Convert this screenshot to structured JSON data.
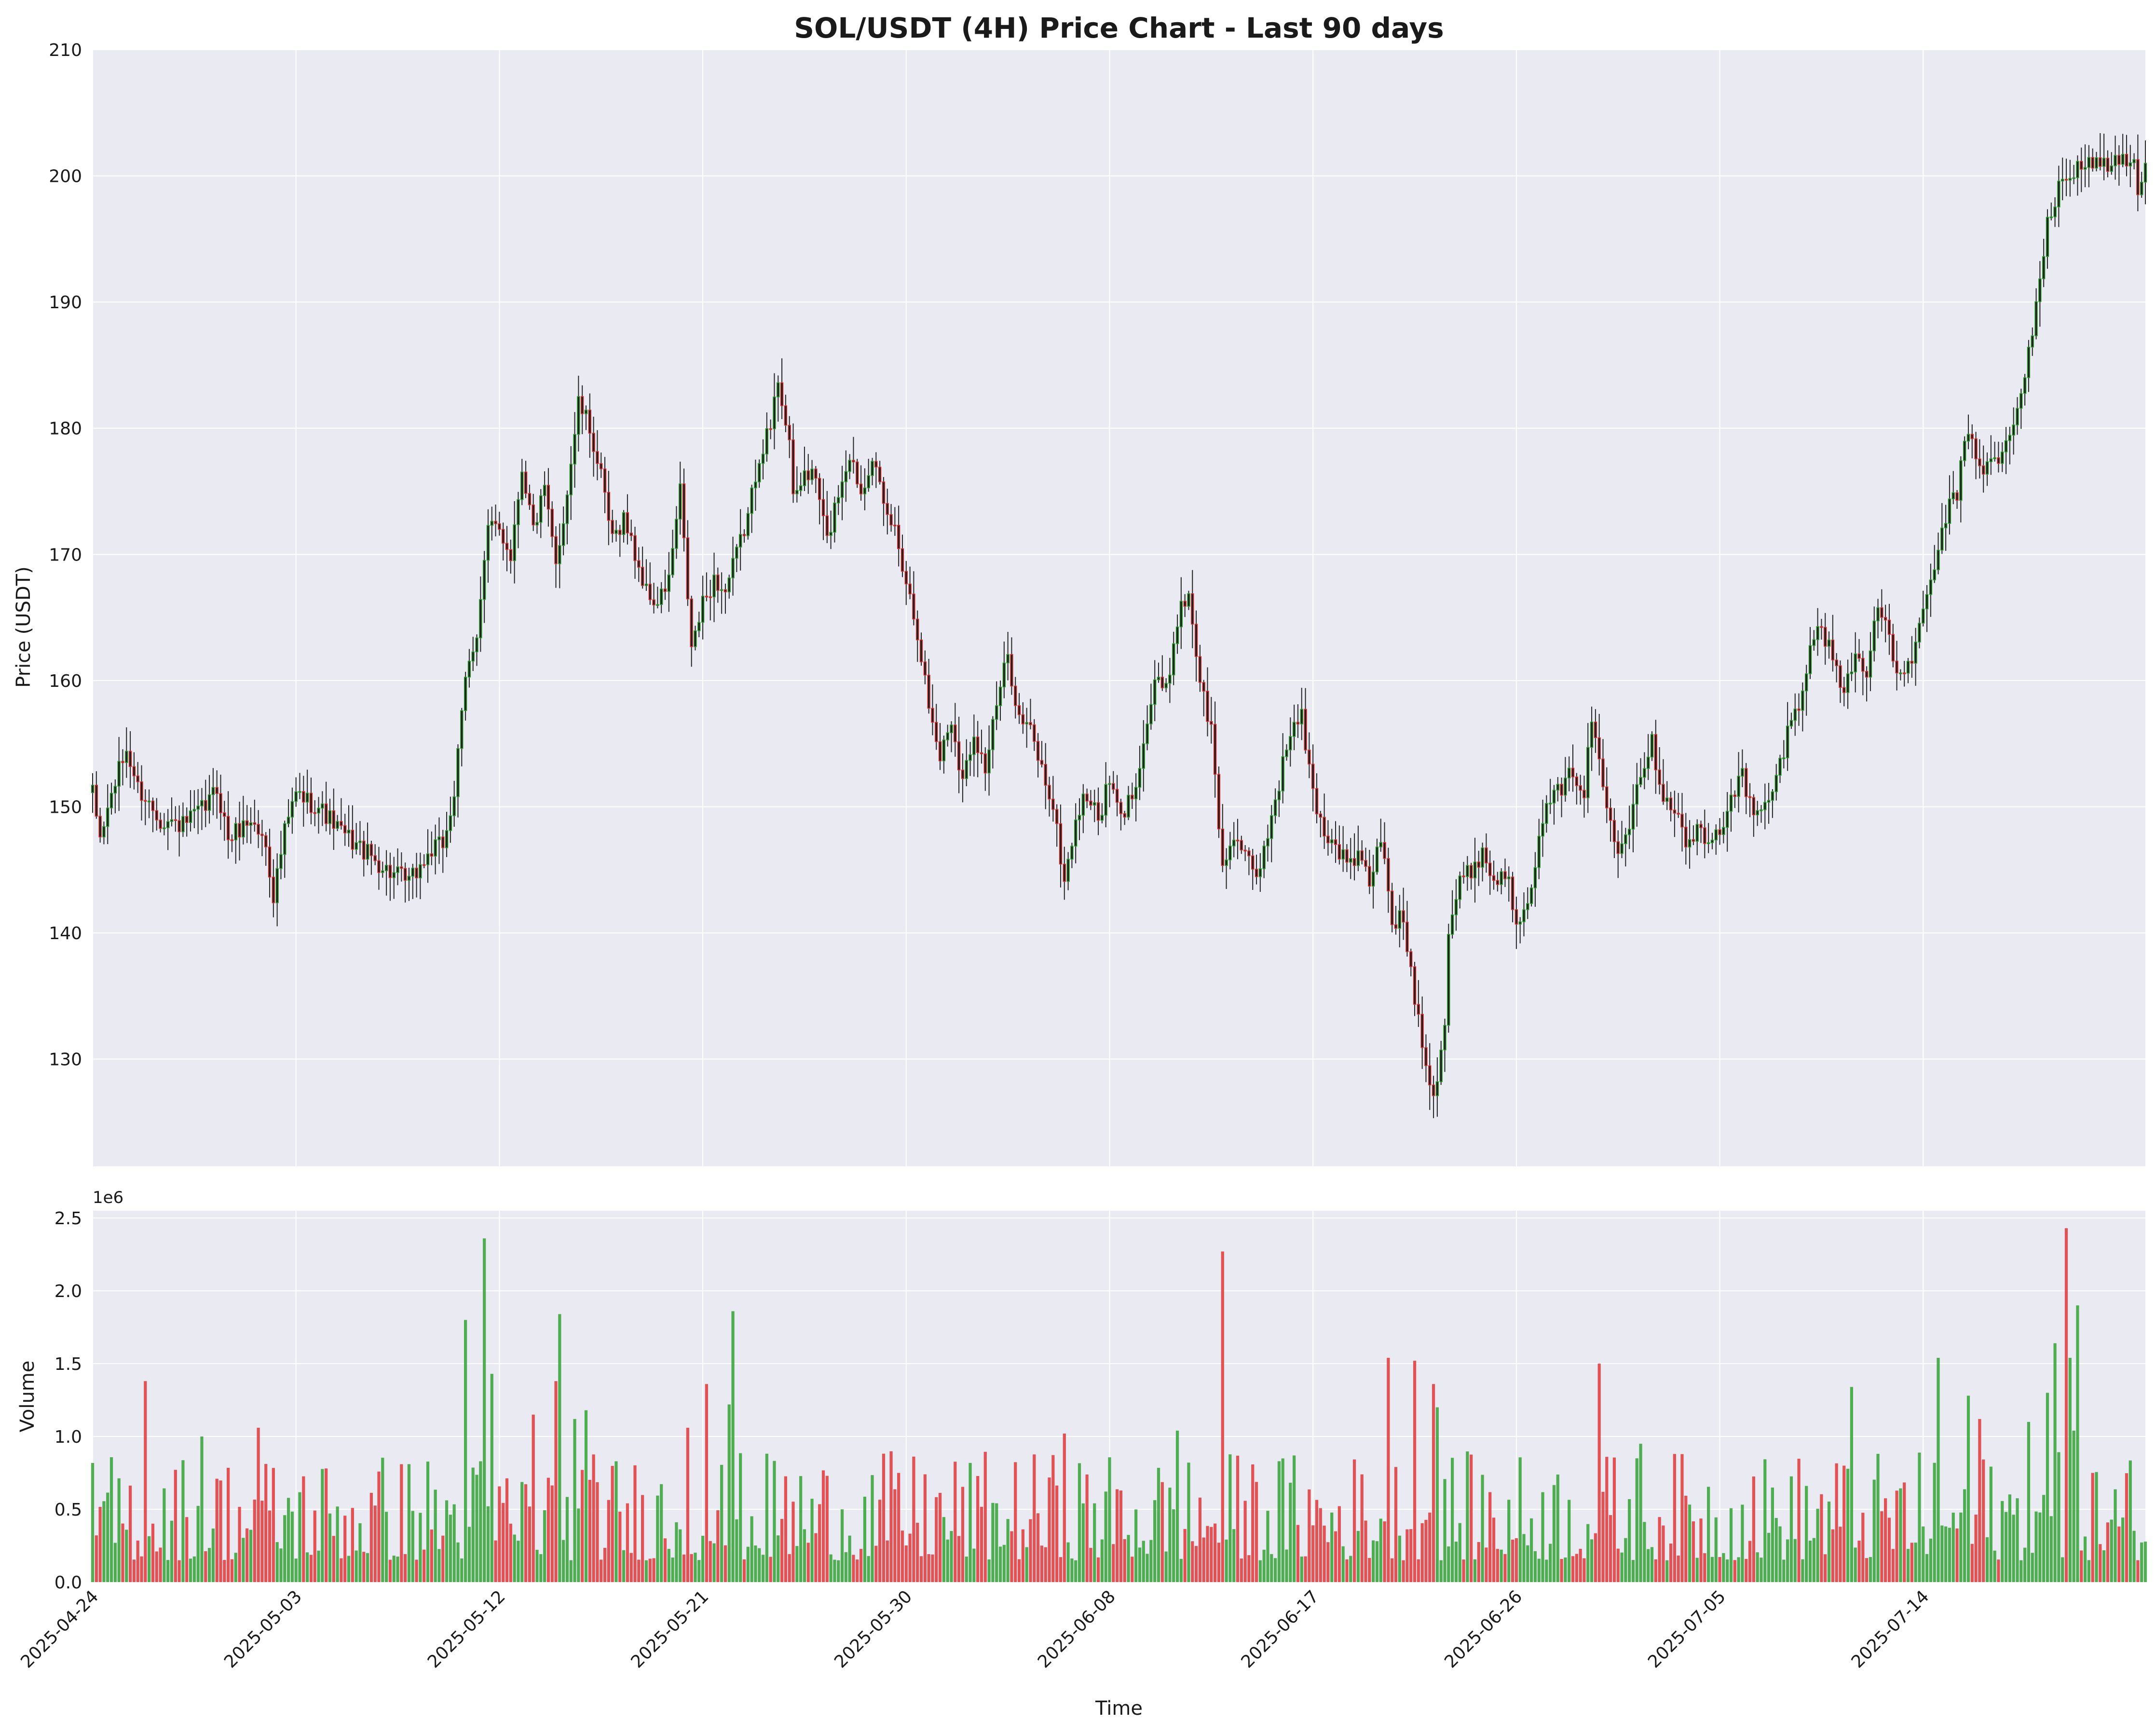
{
  "colors": {
    "background": "#ffffff",
    "panel": "#eaeaf2",
    "grid": "#ffffff",
    "up": "#2ca02c",
    "down": "#e03030",
    "body_dark": "#1f1f1f",
    "wick": "#222222",
    "text": "#1a1a1a"
  },
  "chart_data": [
    {
      "type": "candlestick",
      "title": "SOL/USDT (4H) Price Chart - Last 90 days",
      "ylabel": "Price (USDT)",
      "xlabel": "",
      "ylim": [
        121.5,
        210
      ],
      "yticks": [
        130,
        140,
        150,
        160,
        170,
        180,
        190,
        200,
        210
      ],
      "grid": true,
      "candle_interval_hours": 4,
      "x_start": "2025-04-24",
      "x_end": "2025-07-23T20:00",
      "anchors": [
        [
          "2025-04-24",
          151
        ],
        [
          "2025-04-24T08:00",
          147.5
        ],
        [
          "2025-04-25",
          152
        ],
        [
          "2025-04-25T12:00",
          154.5
        ],
        [
          "2025-04-26",
          151.5
        ],
        [
          "2025-04-27",
          149
        ],
        [
          "2025-04-28",
          148.5
        ],
        [
          "2025-04-29",
          150
        ],
        [
          "2025-04-29T12:00",
          151.5
        ],
        [
          "2025-04-30",
          147.5
        ],
        [
          "2025-05-01",
          149
        ],
        [
          "2025-05-01T16:00",
          147
        ],
        [
          "2025-05-02",
          143
        ],
        [
          "2025-05-02T12:00",
          148
        ],
        [
          "2025-05-03",
          151
        ],
        [
          "2025-05-04",
          150
        ],
        [
          "2025-05-05",
          148
        ],
        [
          "2025-05-06",
          146.5
        ],
        [
          "2025-05-07",
          145
        ],
        [
          "2025-05-08",
          144
        ],
        [
          "2025-05-09",
          146.5
        ],
        [
          "2025-05-09T12:00",
          147
        ],
        [
          "2025-05-10",
          151
        ],
        [
          "2025-05-10T12:00",
          160
        ],
        [
          "2025-05-11",
          164
        ],
        [
          "2025-05-11T12:00",
          172
        ],
        [
          "2025-05-12",
          172
        ],
        [
          "2025-05-12T12:00",
          170
        ],
        [
          "2025-05-13",
          177
        ],
        [
          "2025-05-13T12:00",
          172
        ],
        [
          "2025-05-14",
          175
        ],
        [
          "2025-05-14T12:00",
          169
        ],
        [
          "2025-05-15",
          175
        ],
        [
          "2025-05-15T12:00",
          182
        ],
        [
          "2025-05-16",
          180
        ],
        [
          "2025-05-16T12:00",
          176
        ],
        [
          "2025-05-17",
          171
        ],
        [
          "2025-05-17T12:00",
          173
        ],
        [
          "2025-05-18",
          170
        ],
        [
          "2025-05-18T12:00",
          167
        ],
        [
          "2025-05-19",
          166
        ],
        [
          "2025-05-19T12:00",
          168
        ],
        [
          "2025-05-20",
          175
        ],
        [
          "2025-05-20T12:00",
          162.5
        ],
        [
          "2025-05-21",
          166
        ],
        [
          "2025-05-21T12:00",
          168
        ],
        [
          "2025-05-22",
          167
        ],
        [
          "2025-05-22T12:00",
          170
        ],
        [
          "2025-05-23",
          173
        ],
        [
          "2025-05-23T12:00",
          178
        ],
        [
          "2025-05-24",
          180
        ],
        [
          "2025-05-24T08:00",
          184
        ],
        [
          "2025-05-24T20:00",
          179
        ],
        [
          "2025-05-25",
          174
        ],
        [
          "2025-05-25T12:00",
          176.5
        ],
        [
          "2025-05-26",
          176
        ],
        [
          "2025-05-26T12:00",
          171
        ],
        [
          "2025-05-27",
          175
        ],
        [
          "2025-05-27T12:00",
          178
        ],
        [
          "2025-05-28",
          175
        ],
        [
          "2025-05-28T12:00",
          178
        ],
        [
          "2025-05-29",
          173.5
        ],
        [
          "2025-05-29T12:00",
          172
        ],
        [
          "2025-05-30",
          168
        ],
        [
          "2025-05-30T12:00",
          164
        ],
        [
          "2025-05-31",
          158
        ],
        [
          "2025-05-31T12:00",
          154
        ],
        [
          "2025-06-01",
          157
        ],
        [
          "2025-06-01T12:00",
          152
        ],
        [
          "2025-06-02",
          156
        ],
        [
          "2025-06-02T12:00",
          153
        ],
        [
          "2025-06-03",
          158
        ],
        [
          "2025-06-03T12:00",
          162
        ],
        [
          "2025-06-04",
          157
        ],
        [
          "2025-06-04T12:00",
          156
        ],
        [
          "2025-06-05",
          153
        ],
        [
          "2025-06-05T12:00",
          150
        ],
        [
          "2025-06-06",
          144
        ],
        [
          "2025-06-06T12:00",
          149
        ],
        [
          "2025-06-07",
          151
        ],
        [
          "2025-06-07T12:00",
          149
        ],
        [
          "2025-06-08",
          152
        ],
        [
          "2025-06-08T12:00",
          149
        ],
        [
          "2025-06-09",
          151
        ],
        [
          "2025-06-09T12:00",
          155
        ],
        [
          "2025-06-10",
          160
        ],
        [
          "2025-06-10T12:00",
          159
        ],
        [
          "2025-06-11",
          165
        ],
        [
          "2025-06-11T12:00",
          167
        ],
        [
          "2025-06-12",
          160
        ],
        [
          "2025-06-12T12:00",
          156
        ],
        [
          "2025-06-13",
          145
        ],
        [
          "2025-06-13T12:00",
          148
        ],
        [
          "2025-06-14",
          146
        ],
        [
          "2025-06-14T12:00",
          144
        ],
        [
          "2025-06-15",
          148
        ],
        [
          "2025-06-15T12:00",
          152
        ],
        [
          "2025-06-16",
          156
        ],
        [
          "2025-06-16T12:00",
          157
        ],
        [
          "2025-06-17",
          151
        ],
        [
          "2025-06-17T12:00",
          148
        ],
        [
          "2025-06-18",
          147
        ],
        [
          "2025-06-18T12:00",
          145.5
        ],
        [
          "2025-06-19",
          146
        ],
        [
          "2025-06-19T12:00",
          144
        ],
        [
          "2025-06-20",
          147.5
        ],
        [
          "2025-06-20T12:00",
          141
        ],
        [
          "2025-06-21",
          141
        ],
        [
          "2025-06-21T12:00",
          135
        ],
        [
          "2025-06-22",
          130
        ],
        [
          "2025-06-22T08:00",
          127
        ],
        [
          "2025-06-22T20:00",
          133
        ],
        [
          "2025-06-23",
          140
        ],
        [
          "2025-06-23T12:00",
          144
        ],
        [
          "2025-06-24",
          145
        ],
        [
          "2025-06-24T12:00",
          146.5
        ],
        [
          "2025-06-25",
          144
        ],
        [
          "2025-06-25T12:00",
          145
        ],
        [
          "2025-06-26",
          141
        ],
        [
          "2025-06-26T12:00",
          143
        ],
        [
          "2025-06-27",
          147
        ],
        [
          "2025-06-27T12:00",
          151
        ],
        [
          "2025-06-28",
          151
        ],
        [
          "2025-06-28T12:00",
          153
        ],
        [
          "2025-06-29",
          151
        ],
        [
          "2025-06-29T08:00",
          157
        ],
        [
          "2025-06-30",
          150
        ],
        [
          "2025-06-30T12:00",
          147
        ],
        [
          "2025-07-01",
          149
        ],
        [
          "2025-07-01T12:00",
          153
        ],
        [
          "2025-07-02",
          155
        ],
        [
          "2025-07-02T12:00",
          151
        ],
        [
          "2025-07-03",
          150
        ],
        [
          "2025-07-03T12:00",
          147
        ],
        [
          "2025-07-04",
          148
        ],
        [
          "2025-07-04T12:00",
          147
        ],
        [
          "2025-07-05",
          148
        ],
        [
          "2025-07-05T12:00",
          151
        ],
        [
          "2025-07-06",
          152.5
        ],
        [
          "2025-07-06T12:00",
          149
        ],
        [
          "2025-07-07",
          150
        ],
        [
          "2025-07-07T12:00",
          152
        ],
        [
          "2025-07-08",
          156
        ],
        [
          "2025-07-08T12:00",
          158
        ],
        [
          "2025-07-09",
          163
        ],
        [
          "2025-07-09T12:00",
          164
        ],
        [
          "2025-07-10",
          162
        ],
        [
          "2025-07-10T12:00",
          159
        ],
        [
          "2025-07-11",
          162
        ],
        [
          "2025-07-11T12:00",
          161
        ],
        [
          "2025-07-12",
          166
        ],
        [
          "2025-07-12T12:00",
          163
        ],
        [
          "2025-07-13",
          160
        ],
        [
          "2025-07-13T12:00",
          162
        ],
        [
          "2025-07-14",
          165
        ],
        [
          "2025-07-14T12:00",
          169
        ],
        [
          "2025-07-15",
          173
        ],
        [
          "2025-07-15T12:00",
          175
        ],
        [
          "2025-07-16",
          180
        ],
        [
          "2025-07-16T12:00",
          177
        ],
        [
          "2025-07-17",
          177
        ],
        [
          "2025-07-17T12:00",
          178
        ],
        [
          "2025-07-18",
          180
        ],
        [
          "2025-07-18T12:00",
          184
        ],
        [
          "2025-07-19",
          190
        ],
        [
          "2025-07-19T12:00",
          196
        ],
        [
          "2025-07-20",
          199
        ],
        [
          "2025-07-20T12:00",
          200
        ],
        [
          "2025-07-20T20:00",
          201
        ]
      ]
    },
    {
      "type": "bar",
      "ylabel": "Volume",
      "xlabel": "Time",
      "multiplier_label": "1e6",
      "ylim": [
        0,
        2.55
      ],
      "yticks": [
        "0.0",
        "0.5",
        "1.0",
        "1.5",
        "2.0",
        "2.5"
      ],
      "grid": true,
      "xtick_labels": [
        "2025-04-24",
        "2025-05-03",
        "2025-05-12",
        "2025-05-21",
        "2025-05-30",
        "2025-06-08",
        "2025-06-17",
        "2025-06-26",
        "2025-07-05",
        "2025-07-14"
      ],
      "spikes_millions": [
        [
          "2025-04-26T08:00",
          1.38
        ],
        [
          "2025-04-28T20:00",
          1.0
        ],
        [
          "2025-05-01T08:00",
          1.06
        ],
        [
          "2025-05-10T12:00",
          1.8
        ],
        [
          "2025-05-11T08:00",
          2.36
        ],
        [
          "2025-05-11T16:00",
          1.43
        ],
        [
          "2025-05-13T12:00",
          1.15
        ],
        [
          "2025-05-14T12:00",
          1.38
        ],
        [
          "2025-05-14T16:00",
          1.84
        ],
        [
          "2025-05-15T08:00",
          1.12
        ],
        [
          "2025-05-15T20:00",
          1.18
        ],
        [
          "2025-05-20T08:00",
          1.06
        ],
        [
          "2025-05-21T04:00",
          1.36
        ],
        [
          "2025-05-22T08:00",
          1.86
        ],
        [
          "2025-05-22T04:00",
          1.22
        ],
        [
          "2025-06-06T00:00",
          1.02
        ],
        [
          "2025-06-11T00:00",
          1.04
        ],
        [
          "2025-06-13T00:00",
          2.27
        ],
        [
          "2025-06-20T08:00",
          1.54
        ],
        [
          "2025-06-21T12:00",
          1.52
        ],
        [
          "2025-06-22T08:00",
          1.36
        ],
        [
          "2025-06-22T12:00",
          1.2
        ],
        [
          "2025-06-29T16:00",
          1.5
        ],
        [
          "2025-07-01T12:00",
          0.95
        ],
        [
          "2025-07-10T20:00",
          1.34
        ],
        [
          "2025-07-14T16:00",
          1.54
        ],
        [
          "2025-07-16T00:00",
          1.28
        ],
        [
          "2025-07-16T12:00",
          1.12
        ],
        [
          "2025-07-18T16:00",
          1.1
        ],
        [
          "2025-07-19T12:00",
          1.3
        ],
        [
          "2025-07-19T20:00",
          1.64
        ],
        [
          "2025-07-20T08:00",
          2.43
        ],
        [
          "2025-07-20T12:00",
          1.54
        ],
        [
          "2025-07-20T16:00",
          1.04
        ],
        [
          "2025-07-20T20:00",
          1.9
        ]
      ]
    }
  ]
}
